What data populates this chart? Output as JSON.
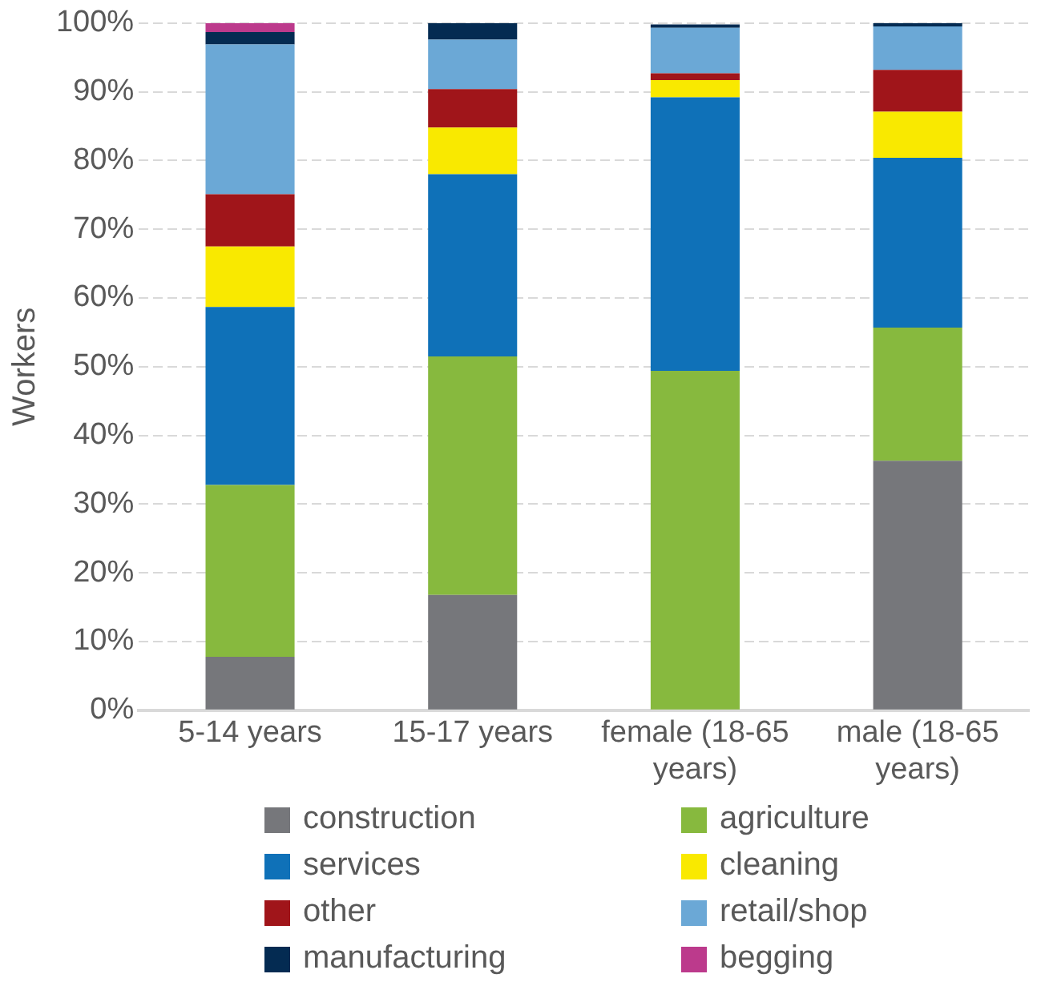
{
  "chart_data": {
    "type": "bar",
    "stacked": true,
    "ylabel": "Workers",
    "categories": [
      "5-14 years",
      "15-17 years",
      "female (18-65 years)",
      "male (18-65 years)"
    ],
    "series": [
      {
        "name": "construction",
        "color": "#76777b",
        "values": [
          7.8,
          16.8,
          0,
          36.3
        ]
      },
      {
        "name": "agriculture",
        "color": "#87b93e",
        "values": [
          25.0,
          34.7,
          49.4,
          19.4
        ]
      },
      {
        "name": "services",
        "color": "#0f71b8",
        "values": [
          25.9,
          26.5,
          39.8,
          24.7
        ]
      },
      {
        "name": "cleaning",
        "color": "#f9e900",
        "values": [
          8.8,
          6.8,
          2.5,
          6.7
        ]
      },
      {
        "name": "other",
        "color": "#a0151a",
        "values": [
          7.6,
          5.6,
          1.0,
          6.1
        ]
      },
      {
        "name": "retail/shop",
        "color": "#6ba8d6",
        "values": [
          21.8,
          7.2,
          6.6,
          6.3
        ]
      },
      {
        "name": "manufacturing",
        "color": "#042b52",
        "values": [
          1.8,
          2.4,
          0.5,
          0.5
        ]
      },
      {
        "name": "begging",
        "color": "#bc3a8c",
        "values": [
          1.3,
          0,
          0,
          0
        ]
      }
    ],
    "ylim": [
      0,
      100
    ],
    "yticks": [
      {
        "value": 0,
        "label": "0%"
      },
      {
        "value": 10,
        "label": "10%"
      },
      {
        "value": 20,
        "label": "20%"
      },
      {
        "value": 30,
        "label": "30%"
      },
      {
        "value": 40,
        "label": "40%"
      },
      {
        "value": 50,
        "label": "50%"
      },
      {
        "value": 60,
        "label": "60%"
      },
      {
        "value": 70,
        "label": "70%"
      },
      {
        "value": 80,
        "label": "80%"
      },
      {
        "value": 90,
        "label": "90%"
      },
      {
        "value": 100,
        "label": "100%"
      }
    ],
    "grid": "y",
    "legend": "bottom"
  }
}
